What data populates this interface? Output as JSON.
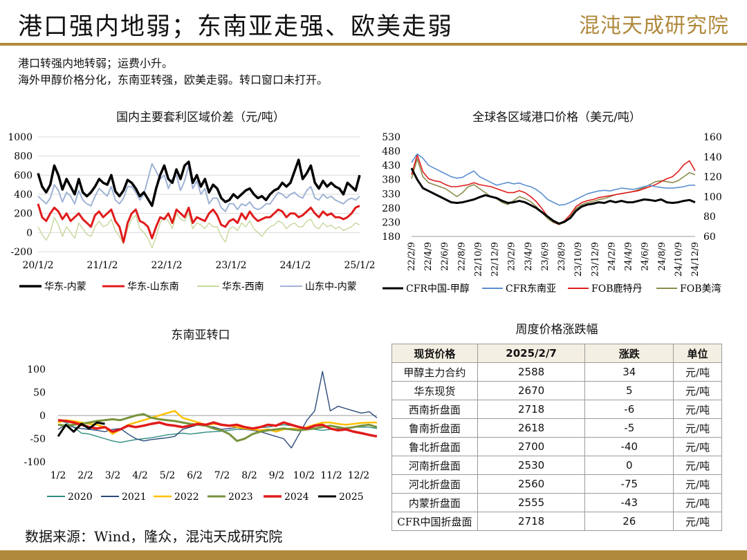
{
  "header": {
    "title": "港口强内地弱；东南亚走强、欧美走弱",
    "logo_text": "混沌天成研究院",
    "accent_color": "#b0893c"
  },
  "intro": {
    "line1": "港口转强内地转弱；运费小升。",
    "line2": "海外甲醇价格分化，东南亚转强，欧美走弱。转口窗口未打开。"
  },
  "chart_data": [
    {
      "id": "spread",
      "type": "line",
      "title": "国内主要套利区域价差（元/吨）",
      "x_ticks": [
        "20/1/2",
        "21/1/2",
        "22/1/2",
        "23/1/2",
        "24/1/2",
        "25/1/2"
      ],
      "ylim": [
        -200,
        1000
      ],
      "y_ticks": [
        -200,
        0,
        200,
        400,
        600,
        800,
        1000
      ],
      "grid": true,
      "legend_position": "bottom",
      "series": [
        {
          "name": "华东-内蒙",
          "color": "#000000",
          "width": 3.5,
          "values": [
            620,
            480,
            420,
            500,
            700,
            600,
            450,
            560,
            480,
            400,
            560,
            420,
            380,
            420,
            480,
            560,
            520,
            500,
            600,
            430,
            380,
            440,
            550,
            520,
            460,
            380,
            420,
            350,
            280,
            460,
            600,
            700,
            560,
            520,
            660,
            560,
            700,
            740,
            520,
            600,
            480,
            560,
            420,
            500,
            460,
            360,
            320,
            340,
            400,
            360,
            400,
            440,
            460,
            400,
            360,
            380,
            340,
            400,
            440,
            460,
            520,
            480,
            520,
            640,
            760,
            560,
            620,
            700,
            520,
            460,
            540,
            480,
            520,
            480,
            460,
            400,
            520,
            480,
            440,
            600
          ]
        },
        {
          "name": "华东-山东南",
          "color": "#e01b1b",
          "width": 3,
          "values": [
            300,
            160,
            120,
            200,
            260,
            220,
            140,
            200,
            120,
            160,
            200,
            140,
            100,
            60,
            180,
            220,
            160,
            200,
            240,
            120,
            60,
            -100,
            100,
            200,
            240,
            120,
            100,
            60,
            -60,
            60,
            160,
            140,
            200,
            100,
            240,
            200,
            160,
            260,
            100,
            160,
            140,
            120,
            200,
            240,
            180,
            80,
            60,
            120,
            140,
            100,
            200,
            140,
            220,
            160,
            120,
            140,
            160,
            160,
            200,
            240,
            220,
            160,
            200,
            200,
            160,
            180,
            220,
            260,
            200,
            160,
            220,
            180,
            200,
            160,
            160,
            140,
            160,
            200,
            260,
            280
          ]
        },
        {
          "name": "华东-西南",
          "color": "#c8d9a0",
          "width": 1.5,
          "values": [
            60,
            -20,
            -80,
            0,
            160,
            80,
            -40,
            60,
            0,
            -60,
            100,
            40,
            -20,
            -40,
            60,
            120,
            60,
            80,
            140,
            20,
            -40,
            -120,
            40,
            140,
            180,
            40,
            0,
            -60,
            -160,
            -40,
            100,
            160,
            120,
            40,
            200,
            140,
            120,
            200,
            40,
            100,
            80,
            40,
            100,
            60,
            60,
            -40,
            -100,
            40,
            60,
            20,
            100,
            60,
            120,
            40,
            0,
            -40,
            20,
            60,
            80,
            120,
            100,
            40,
            80,
            100,
            60,
            60,
            120,
            140,
            60,
            40,
            100,
            60,
            80,
            40,
            60,
            20,
            40,
            60,
            100,
            80
          ]
        },
        {
          "name": "山东中-内蒙",
          "color": "#9fb3d6",
          "width": 2,
          "values": [
            380,
            340,
            300,
            360,
            500,
            440,
            320,
            420,
            380,
            300,
            440,
            340,
            300,
            280,
            380,
            460,
            420,
            380,
            480,
            340,
            300,
            360,
            480,
            480,
            420,
            340,
            400,
            560,
            720,
            640,
            560,
            600,
            460,
            560,
            600,
            440,
            540,
            700,
            460,
            540,
            400,
            460,
            300,
            360,
            360,
            260,
            220,
            300,
            300,
            240,
            300,
            280,
            320,
            260,
            240,
            260,
            300,
            300,
            360,
            420,
            400,
            360,
            400,
            420,
            380,
            360,
            440,
            480,
            360,
            340,
            400,
            360,
            380,
            340,
            320,
            300,
            340,
            360,
            340,
            380
          ]
        }
      ]
    },
    {
      "id": "global",
      "type": "line",
      "title": "全球各区域港口价格（美元/吨）",
      "x_ticks": [
        "22/2/9",
        "22/4/9",
        "22/6/9",
        "22/8/9",
        "22/10/9",
        "22/12/9",
        "23/2/9",
        "23/4/9",
        "23/6/9",
        "23/8/9",
        "23/10/9",
        "23/12/9",
        "24/2/9",
        "24/4/9",
        "24/6/9",
        "24/8/9",
        "24/10/9",
        "24/12/9"
      ],
      "ylim_left": [
        180,
        530
      ],
      "y_ticks_left": [
        180,
        230,
        280,
        330,
        380,
        430,
        480,
        530
      ],
      "ylim_right": [
        60,
        160
      ],
      "y_ticks_right": [
        60,
        80,
        100,
        120,
        140,
        160
      ],
      "grid": false,
      "legend_position": "bottom",
      "series": [
        {
          "name": "CFR中国-甲醇",
          "color": "#000000",
          "width": 3,
          "axis": "left",
          "values": [
            420,
            380,
            350,
            340,
            330,
            320,
            310,
            300,
            298,
            300,
            305,
            310,
            318,
            325,
            320,
            315,
            305,
            298,
            300,
            305,
            300,
            290,
            280,
            265,
            250,
            235,
            225,
            232,
            245,
            270,
            285,
            292,
            295,
            300,
            298,
            305,
            300,
            305,
            300,
            300,
            305,
            310,
            308,
            305,
            310,
            300,
            298,
            300,
            305,
            308,
            300
          ]
        },
        {
          "name": "CFR东南亚",
          "color": "#5b8fd1",
          "width": 1.6,
          "axis": "left",
          "values": [
            440,
            470,
            455,
            430,
            420,
            410,
            400,
            390,
            385,
            388,
            400,
            410,
            390,
            380,
            370,
            360,
            365,
            370,
            365,
            368,
            360,
            355,
            345,
            330,
            310,
            300,
            290,
            292,
            300,
            310,
            320,
            330,
            335,
            340,
            342,
            340,
            345,
            350,
            348,
            345,
            350,
            355,
            360,
            355,
            352,
            350,
            350,
            352,
            355,
            360,
            360
          ]
        },
        {
          "name": "FOB鹿特丹",
          "color": "#e01b1b",
          "width": 1.6,
          "axis": "right",
          "values": [
            122,
            142,
            125,
            118,
            116,
            115,
            112,
            110,
            110,
            111,
            112,
            114,
            112,
            111,
            110,
            108,
            106,
            104,
            104,
            106,
            104,
            100,
            95,
            88,
            80,
            75,
            72,
            76,
            82,
            90,
            94,
            96,
            97,
            99,
            100,
            101,
            102,
            103,
            104,
            105,
            106,
            108,
            110,
            112,
            115,
            118,
            120,
            125,
            132,
            136,
            126
          ]
        },
        {
          "name": "FOB美湾",
          "color": "#8a8a4a",
          "width": 1.6,
          "axis": "right",
          "values": [
            118,
            138,
            120,
            114,
            112,
            110,
            108,
            104,
            100,
            104,
            110,
            112,
            108,
            104,
            100,
            98,
            94,
            92,
            96,
            100,
            98,
            95,
            90,
            84,
            78,
            74,
            72,
            74,
            80,
            88,
            92,
            94,
            95,
            97,
            98,
            100,
            102,
            103,
            104,
            105,
            107,
            109,
            112,
            115,
            116,
            115,
            114,
            116,
            120,
            124,
            122
          ]
        }
      ]
    },
    {
      "id": "sea",
      "type": "line",
      "title": "东南亚转口",
      "x_ticks": [
        "1/2",
        "2/2",
        "3/2",
        "4/2",
        "5/2",
        "6/2",
        "7/2",
        "8/2",
        "9/2",
        "10/2",
        "11/2",
        "12/2"
      ],
      "ylim": [
        -100,
        100
      ],
      "y_ticks": [
        -100,
        -50,
        0,
        50,
        100
      ],
      "grid": false,
      "legend_position": "bottom",
      "series": [
        {
          "name": "2020",
          "color": "#2e8b80",
          "width": 1.4,
          "values": [
            -10,
            -15,
            -25,
            -38,
            -40,
            -45,
            -50,
            -55,
            -58,
            -55,
            -52,
            -50,
            -48,
            -45,
            -42,
            -40,
            -38,
            -40,
            -38,
            -36,
            -35,
            -34,
            -32,
            -30,
            -30,
            -28,
            -26,
            -25,
            -22,
            -20,
            -22,
            -25,
            -28,
            -30,
            -32,
            -30,
            -28,
            -26,
            -25,
            -25,
            -25,
            -28
          ]
        },
        {
          "name": "2021",
          "color": "#2b4a7a",
          "width": 1.4,
          "values": [
            -30,
            -20,
            -25,
            -28,
            -30,
            -32,
            -35,
            -30,
            -28,
            -40,
            -50,
            -55,
            -52,
            -50,
            -48,
            -45,
            -30,
            -25,
            -20,
            -22,
            -25,
            -30,
            -28,
            -26,
            -30,
            -32,
            -35,
            -40,
            -45,
            -50,
            -70,
            -40,
            -10,
            10,
            95,
            10,
            20,
            15,
            10,
            5,
            8,
            -5
          ]
        },
        {
          "name": "2022",
          "color": "#ffc000",
          "width": 2.5,
          "values": [
            -15,
            -10,
            -12,
            -15,
            -18,
            -20,
            -25,
            -40,
            -30,
            -20,
            -15,
            -10,
            -5,
            0,
            5,
            10,
            -5,
            -10,
            -15,
            -20,
            -18,
            -20,
            -22,
            -25,
            -28,
            -30,
            -32,
            -30,
            -35,
            -30,
            -28,
            -30,
            -25,
            -20,
            -15,
            -15,
            -18,
            -20,
            -18,
            -16,
            -15,
            -15
          ]
        },
        {
          "name": "2023",
          "color": "#77933c",
          "width": 3,
          "values": [
            -20,
            -22,
            -20,
            -18,
            -15,
            -12,
            -10,
            -8,
            -10,
            -5,
            0,
            3,
            -5,
            -8,
            -10,
            -12,
            -15,
            -18,
            -20,
            -22,
            -28,
            -32,
            -40,
            -55,
            -50,
            -40,
            -35,
            -32,
            -30,
            -28,
            -30,
            -32,
            -30,
            -28,
            -25,
            -22,
            -25,
            -28,
            -25,
            -22,
            -20,
            -25
          ]
        },
        {
          "name": "2024",
          "color": "#e01b1b",
          "width": 3.5,
          "values": [
            -10,
            -12,
            -15,
            -20,
            -25,
            -28,
            -25,
            -35,
            -30,
            -22,
            -25,
            -22,
            -18,
            -15,
            -20,
            -22,
            -25,
            -22,
            -18,
            -20,
            -15,
            -20,
            -22,
            -20,
            -25,
            -28,
            -25,
            -20,
            -22,
            -15,
            -20,
            -25,
            -28,
            -22,
            -20,
            -28,
            -32,
            -30,
            -35,
            -38,
            -42,
            -45
          ]
        },
        {
          "name": "2025",
          "color": "#000000",
          "width": 3,
          "values": [
            -45,
            -20,
            -35,
            -18,
            -28,
            -15,
            -18
          ]
        }
      ]
    }
  ],
  "table": {
    "title": "周度价格涨跌幅",
    "headers": [
      "现货价格",
      "2025/2/7",
      "涨跌",
      "单位"
    ],
    "rows": [
      [
        "甲醇主力合约",
        "2588",
        "34",
        "元/吨"
      ],
      [
        "华东现货",
        "2670",
        "5",
        "元/吨"
      ],
      [
        "西南折盘面",
        "2718",
        "-6",
        "元/吨"
      ],
      [
        "鲁南折盘面",
        "2618",
        "-5",
        "元/吨"
      ],
      [
        "鲁北折盘面",
        "2700",
        "-40",
        "元/吨"
      ],
      [
        "河南折盘面",
        "2530",
        "0",
        "元/吨"
      ],
      [
        "河北折盘面",
        "2560",
        "-75",
        "元/吨"
      ],
      [
        "内蒙折盘面",
        "2555",
        "-43",
        "元/吨"
      ],
      [
        "CFR中国折盘面",
        "2718",
        "26",
        "元/吨"
      ]
    ]
  },
  "footer": {
    "source": "数据来源：Wind，隆众，混沌天成研究院"
  }
}
